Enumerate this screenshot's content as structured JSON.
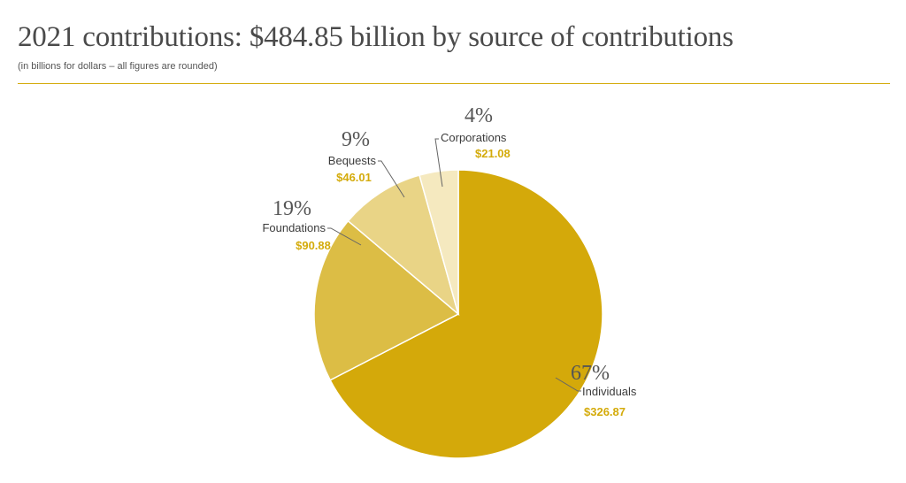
{
  "chart_data": {
    "type": "pie",
    "title": "2021 contributions: $484.85 billion by source of contributions",
    "subtitle": "(in billions for dollars – all figures are rounded)",
    "slices": [
      {
        "name": "Individuals",
        "percent_label": "67%",
        "value_label": "$326.87",
        "value": 326.87,
        "color": "#d4a90a"
      },
      {
        "name": "Foundations",
        "percent_label": "19%",
        "value_label": "$90.88",
        "value": 90.88,
        "color": "#dcbd45"
      },
      {
        "name": "Bequests",
        "percent_label": "9%",
        "value_label": "$46.01",
        "value": 46.01,
        "color": "#e9d486"
      },
      {
        "name": "Corporations",
        "percent_label": "4%",
        "value_label": "$21.08",
        "value": 21.08,
        "color": "#f5e9bf"
      }
    ],
    "accent_color": "#d4ab0b"
  }
}
